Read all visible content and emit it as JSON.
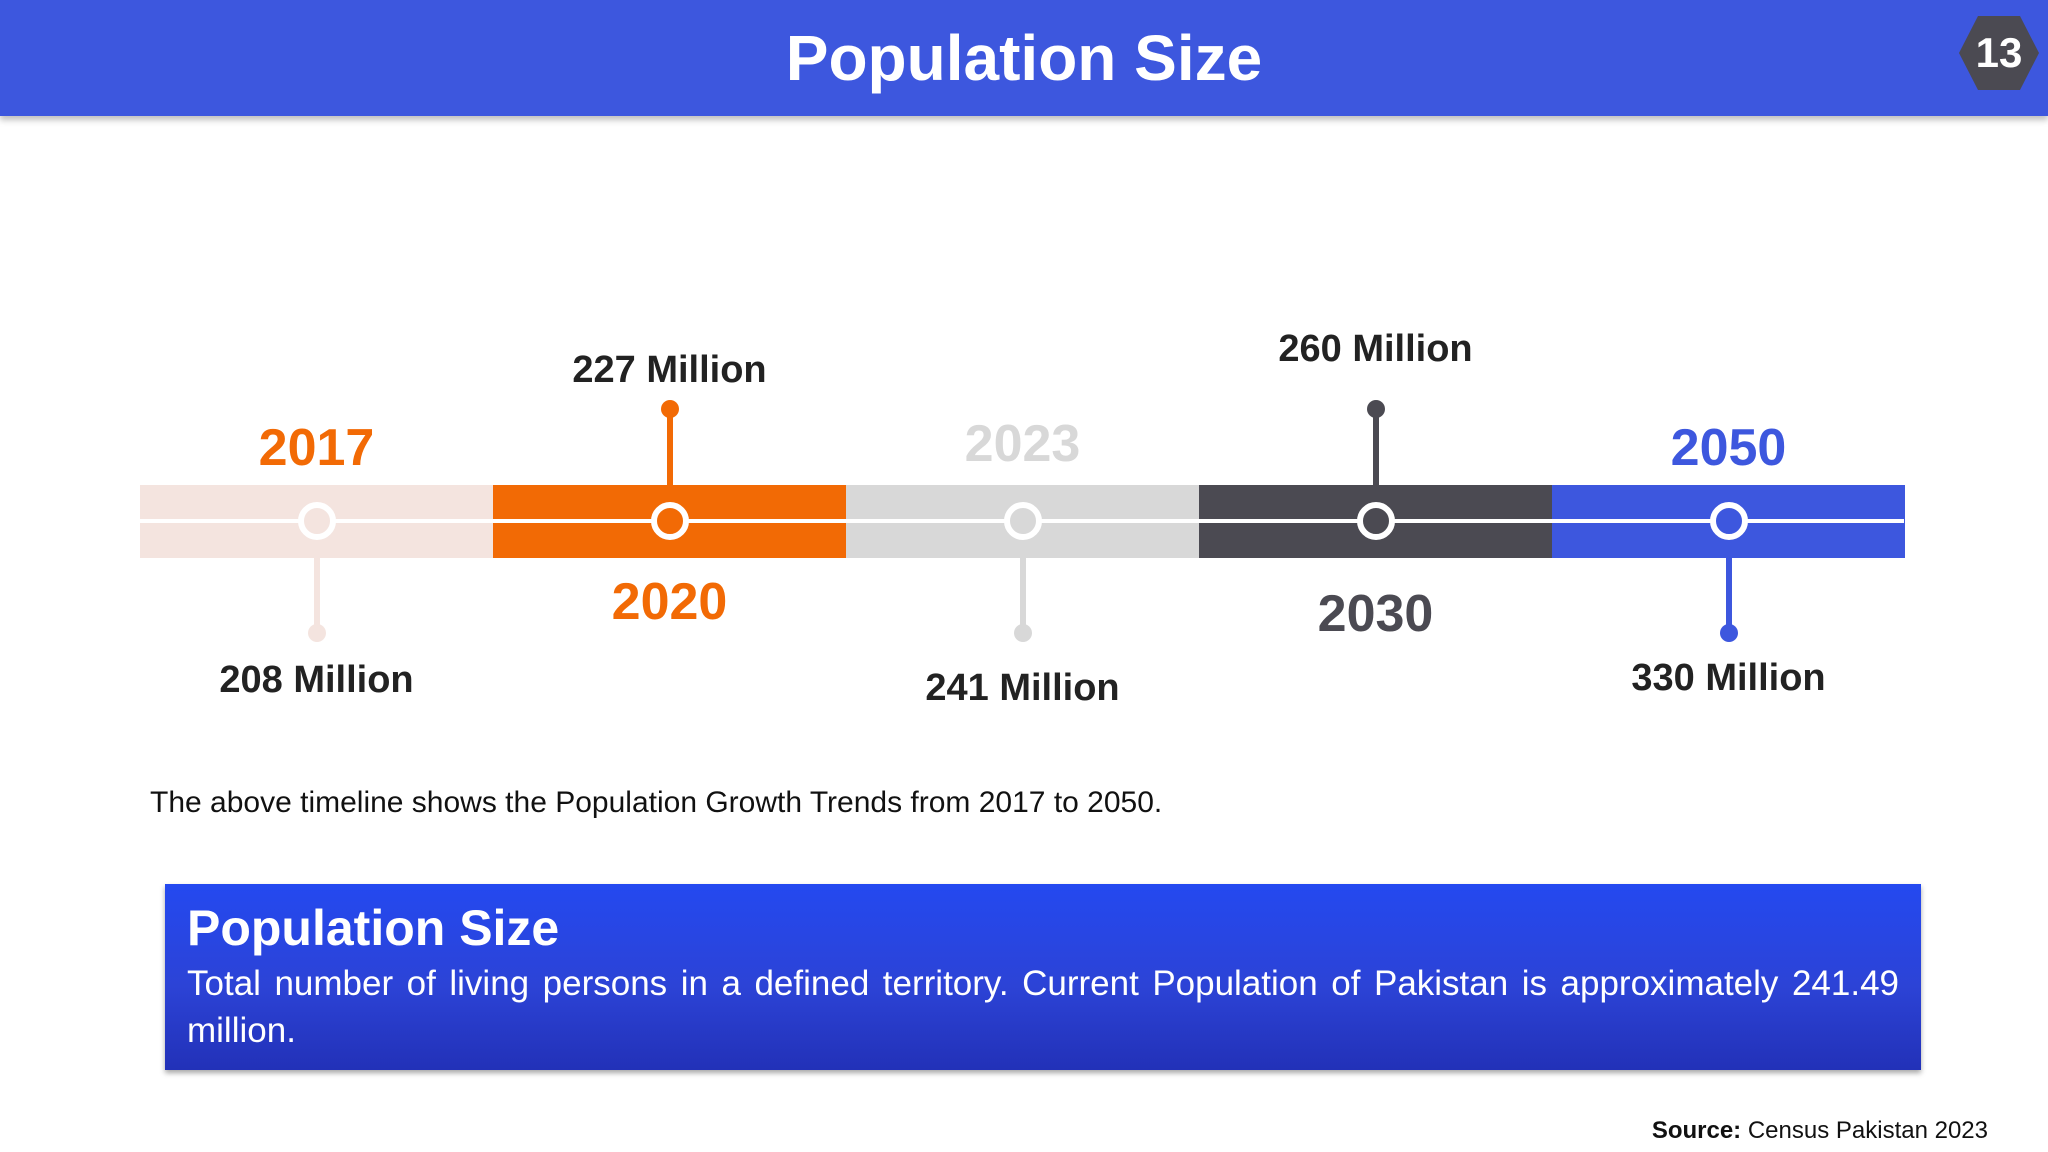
{
  "header": {
    "title": "Population Size",
    "slide_number": "13"
  },
  "colors": {
    "header_bg": "#3d57de",
    "timeline": [
      "#f4e4df",
      "#f26a05",
      "#d8d8d8",
      "#4b4a52",
      "#3d57de"
    ]
  },
  "timeline": {
    "milestones": [
      {
        "year": "2017",
        "value": "208 Million",
        "year_position": "above",
        "value_position": "below",
        "color": "#f4e4df",
        "year_color": "#f26a05"
      },
      {
        "year": "2020",
        "value": "227 Million",
        "year_position": "below",
        "value_position": "above",
        "color": "#f26a05",
        "year_color": "#f26a05"
      },
      {
        "year": "2023",
        "value": "241 Million",
        "year_position": "above",
        "value_position": "below",
        "color": "#d8d8d8",
        "year_color": "#d8d8d8"
      },
      {
        "year": "2030",
        "value": "260 Million",
        "year_position": "below",
        "value_position": "above",
        "color": "#4b4a52",
        "year_color": "#4b4a52"
      },
      {
        "year": "2050",
        "value": "330 Million",
        "year_position": "above",
        "value_position": "below",
        "color": "#3d57de",
        "year_color": "#3d57de"
      }
    ]
  },
  "caption": "The above timeline shows the Population Growth Trends from 2017 to 2050.",
  "definition": {
    "title": "Population Size",
    "text": "Total number of living persons in a defined territory. Current Population of Pakistan is approximately 241.49 million."
  },
  "source": {
    "label": "Source:",
    "text": "Census Pakistan 2023"
  }
}
